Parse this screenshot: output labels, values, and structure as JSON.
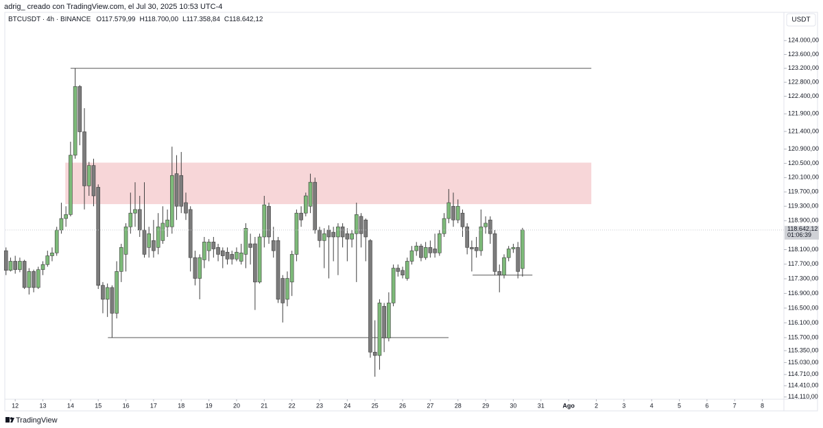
{
  "caption": "adrig_ creado con TradingView.com, el Jul 30, 2025 10:53 UTC-4",
  "header": {
    "symbol": "BTCUSDT · 4h · BINANCE",
    "ohlc": [
      {
        "label": "O",
        "value": "117.579,99"
      },
      {
        "label": "H",
        "value": "118.700,00"
      },
      {
        "label": "L",
        "value": "117.358,84"
      },
      {
        "label": "C",
        "value": "118.642,12"
      }
    ]
  },
  "currency": "USDT",
  "brand": "TradingView",
  "chart_data": {
    "type": "candlestick",
    "x": [
      11.667,
      11.833,
      12,
      12.167,
      12.333,
      12.5,
      12.667,
      12.833,
      13,
      13.167,
      13.333,
      13.5,
      13.667,
      13.833,
      14,
      14.167,
      14.333,
      14.5,
      14.667,
      14.833,
      15,
      15.167,
      15.333,
      15.5,
      15.667,
      15.833,
      16,
      16.167,
      16.333,
      16.5,
      16.667,
      16.833,
      17,
      17.167,
      17.333,
      17.5,
      17.667,
      17.833,
      18,
      18.167,
      18.333,
      18.5,
      18.667,
      18.833,
      19,
      19.167,
      19.333,
      19.5,
      19.667,
      19.833,
      20,
      20.167,
      20.333,
      20.5,
      20.667,
      20.833,
      21,
      21.167,
      21.333,
      21.5,
      21.667,
      21.833,
      22,
      22.167,
      22.333,
      22.5,
      22.667,
      22.833,
      23,
      23.167,
      23.333,
      23.5,
      23.667,
      23.833,
      24,
      24.167,
      24.333,
      24.5,
      24.667,
      24.833,
      25,
      25.167,
      25.333,
      25.5,
      25.667,
      25.833,
      26,
      26.167,
      26.333,
      26.5,
      26.667,
      26.833,
      27,
      27.167,
      27.333,
      27.5,
      27.667,
      27.833,
      28,
      28.167,
      28.333,
      28.5,
      28.667,
      28.833,
      29,
      29.167,
      29.333,
      29.5,
      29.667,
      29.833,
      30,
      30.167,
      30.333
    ],
    "open": [
      118070,
      117530,
      117780,
      117550,
      117780,
      117060,
      117500,
      117060,
      117550,
      117690,
      117930,
      118010,
      118640,
      118960,
      119070,
      120730,
      122680,
      121390,
      119870,
      120440,
      119830,
      117120,
      116740,
      117060,
      116360,
      117500,
      117970,
      118730,
      119110,
      119210,
      118640,
      118160,
      118350,
      118160,
      118350,
      118730,
      118730,
      120210,
      120160,
      119400,
      119210,
      117880,
      117310,
      117820,
      118070,
      118310,
      118160,
      118070,
      118030,
      117970,
      117840,
      117780,
      117970,
      118260,
      118260,
      117210,
      118450,
      119300,
      118350,
      118350,
      117310,
      116740,
      117210,
      117970,
      119110,
      119110,
      119300,
      119970,
      118640,
      118350,
      118640,
      118580,
      118450,
      118730,
      118540,
      118390,
      118540,
      119020,
      118920,
      118350,
      115310,
      115220,
      116550,
      115690,
      116640,
      117590,
      117530,
      117310,
      117780,
      118070,
      118200,
      117880,
      118160,
      118120,
      118010,
      118540,
      118960,
      119300,
      118920,
      119110,
      118730,
      118160,
      118160,
      118070,
      118730,
      118920,
      118540,
      117500,
      117400,
      117880,
      118120,
      118160,
      117579.99
    ],
    "high": [
      118160,
      117880,
      117930,
      117880,
      117820,
      117590,
      117550,
      117630,
      117780,
      118070,
      118160,
      118730,
      119400,
      119300,
      121110,
      123200,
      122720,
      122060,
      120540,
      120630,
      119910,
      117210,
      117170,
      117120,
      117780,
      118260,
      118830,
      119680,
      119970,
      119590,
      119970,
      118730,
      118920,
      119110,
      119300,
      119210,
      120970,
      120730,
      120820,
      119680,
      119300,
      118070,
      117970,
      118450,
      118390,
      118450,
      118260,
      118160,
      118160,
      118070,
      118160,
      118260,
      118830,
      118540,
      118450,
      118540,
      119590,
      119400,
      118730,
      118450,
      117400,
      117500,
      118070,
      119210,
      119300,
      119680,
      120210,
      120100,
      118730,
      118690,
      118770,
      118730,
      118830,
      118830,
      118690,
      118640,
      119400,
      119110,
      118960,
      118390,
      116170,
      116740,
      116640,
      116930,
      117690,
      117690,
      117630,
      117880,
      118200,
      118310,
      118260,
      118310,
      118350,
      118540,
      118640,
      119110,
      119780,
      119680,
      119490,
      119210,
      118830,
      118350,
      118450,
      119210,
      119020,
      119020,
      118640,
      117690,
      117970,
      118200,
      118260,
      118310,
      118700
    ],
    "low": [
      117400,
      117500,
      117440,
      117480,
      117020,
      116870,
      116930,
      117020,
      117400,
      117630,
      117780,
      117930,
      118540,
      118730,
      119020,
      120630,
      121010,
      119210,
      119590,
      119300,
      117020,
      116360,
      116260,
      115700,
      116220,
      117210,
      117500,
      118540,
      118730,
      118450,
      117880,
      117880,
      117880,
      117970,
      118260,
      118450,
      118540,
      118920,
      119110,
      118920,
      117500,
      117120,
      116740,
      117590,
      117780,
      117880,
      117780,
      117590,
      117690,
      117690,
      117780,
      117690,
      117590,
      117690,
      116450,
      117170,
      118160,
      118260,
      117880,
      116640,
      116110,
      116550,
      116830,
      117780,
      118730,
      119020,
      119110,
      118540,
      118160,
      117590,
      117310,
      117780,
      117400,
      118160,
      117780,
      118160,
      117210,
      118160,
      117780,
      115160,
      114650,
      114840,
      115310,
      115600,
      116550,
      117360,
      117310,
      117250,
      117690,
      117930,
      117780,
      117820,
      117880,
      117880,
      117930,
      118450,
      118830,
      118730,
      118830,
      118450,
      117970,
      117500,
      117880,
      117930,
      118540,
      118260,
      117400,
      116930,
      117310,
      117780,
      118010,
      117310,
      117358.84
    ],
    "close": [
      117530,
      117780,
      117550,
      117780,
      117060,
      117500,
      117060,
      117550,
      117690,
      117930,
      118010,
      118640,
      118960,
      119070,
      120730,
      122680,
      121390,
      119870,
      120440,
      119590,
      117120,
      116740,
      117060,
      116360,
      117500,
      118160,
      118730,
      119110,
      119210,
      118640,
      117970,
      118540,
      118070,
      118730,
      118830,
      118920,
      120160,
      119300,
      119300,
      119110,
      117880,
      117310,
      117880,
      118310,
      118310,
      118120,
      117970,
      117930,
      117840,
      117840,
      118030,
      118010,
      118690,
      118160,
      117210,
      118450,
      119340,
      118450,
      118070,
      116740,
      116640,
      117310,
      117970,
      119110,
      118920,
      119590,
      119970,
      118640,
      118350,
      118540,
      118450,
      118450,
      118730,
      118450,
      118390,
      118540,
      119070,
      118540,
      118450,
      115310,
      115220,
      116640,
      115690,
      116640,
      117590,
      117500,
      117400,
      117780,
      118070,
      118200,
      117880,
      118160,
      118010,
      118010,
      118540,
      118960,
      119400,
      118920,
      119300,
      118730,
      118160,
      118120,
      118070,
      118730,
      118830,
      118540,
      117500,
      117400,
      117880,
      118120,
      118160,
      117500,
      118642.12
    ],
    "up_color": "#7dba79",
    "down_color": "#7c7c7c",
    "wick_color": "#3c3c3c",
    "xlim": [
      11.45,
      39.78
    ],
    "xticks": [
      12,
      13,
      14,
      15,
      16,
      17,
      18,
      19,
      20,
      21,
      22,
      23,
      24,
      25,
      26,
      27,
      28,
      29,
      30,
      31,
      {
        "value": 32,
        "label": "Ago"
      },
      {
        "value": 33,
        "label": "2"
      },
      {
        "value": 34,
        "label": "3"
      },
      {
        "value": 35,
        "label": "4"
      },
      {
        "value": 36,
        "label": "5"
      },
      {
        "value": 37,
        "label": "6"
      },
      {
        "value": 38,
        "label": "7"
      },
      {
        "value": 39,
        "label": "8"
      }
    ],
    "ylim": [
      114050,
      124780
    ],
    "log_scale": true,
    "yticks": [
      {
        "value": 124000,
        "label": "124.000,00"
      },
      {
        "value": 123600,
        "label": "123.600,00"
      },
      {
        "value": 123200,
        "label": "123.200,00"
      },
      {
        "value": 122800,
        "label": "122.800,00"
      },
      {
        "value": 122400,
        "label": "122.400,00"
      },
      {
        "value": 121900,
        "label": "121.900,00"
      },
      {
        "value": 121400,
        "label": "121.400,00"
      },
      {
        "value": 120900,
        "label": "120.900,00"
      },
      {
        "value": 120500,
        "label": "120.500,00"
      },
      {
        "value": 120100,
        "label": "120.100,00"
      },
      {
        "value": 119700,
        "label": "119.700,00"
      },
      {
        "value": 119300,
        "label": "119.300,00"
      },
      {
        "value": 118900,
        "label": "118.900,00"
      },
      {
        "value": 118100,
        "label": "118.100,00"
      },
      {
        "value": 117700,
        "label": "117.700,00"
      },
      {
        "value": 117300,
        "label": "117.300,00"
      },
      {
        "value": 116900,
        "label": "116.900,00"
      },
      {
        "value": 116500,
        "label": "116.500,00"
      },
      {
        "value": 116100,
        "label": "116.100,00"
      },
      {
        "value": 115700,
        "label": "115.700,00"
      },
      {
        "value": 115350,
        "label": "115.350,00"
      },
      {
        "value": 115030,
        "label": "115.030,00"
      },
      {
        "value": 114710,
        "label": "114.710,00"
      },
      {
        "value": 114410,
        "label": "114.410,00"
      },
      {
        "value": 114110,
        "label": "114.110,00"
      }
    ],
    "zones": [
      {
        "x": [
          13.81,
          32.82
        ],
        "y": [
          119360,
          120520
        ],
        "color": "#f7d6d8"
      }
    ],
    "levels": [
      {
        "x": [
          14,
          32.82
        ],
        "y": 123200
      },
      {
        "x": [
          15.35,
          27.66
        ],
        "y": 115700
      },
      {
        "x": [
          28.53,
          30.69
        ],
        "y": 117400
      }
    ],
    "level_color": "#555555",
    "last_price": {
      "label": "118.642,12",
      "countdown": "01:06:39"
    }
  }
}
